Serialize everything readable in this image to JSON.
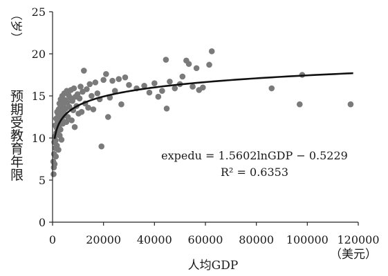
{
  "chart_data": {
    "type": "scatter",
    "ylabel_unit": "（岁）",
    "ylabel": "预期受教育年限",
    "xlabel": "人均GDP",
    "xlabel_unit": "（美元）",
    "xlim": [
      0,
      120000
    ],
    "ylim": [
      0,
      25
    ],
    "xticks": [
      0,
      20000,
      40000,
      60000,
      80000,
      100000,
      120000
    ],
    "xtick_labels": [
      "0",
      "20000",
      "40000",
      "60000",
      "80000",
      "100000",
      "120000"
    ],
    "yticks": [
      0,
      5,
      10,
      15,
      20,
      25
    ],
    "ytick_labels": [
      "0",
      "5",
      "10",
      "15",
      "20",
      "25"
    ],
    "grid": false,
    "marker_color": "#7a7a7a",
    "curve_color": "#111111",
    "trendline": {
      "type": "logarithmic",
      "a": 1.5602,
      "b": -0.5229,
      "x_range": [
        800,
        118000
      ],
      "equation_text": "expedu = 1.5602lnGDP − 0.5229",
      "r2_text": "R² = 0.6353"
    },
    "points": [
      [
        300,
        7.2
      ],
      [
        400,
        5.7
      ],
      [
        500,
        6.5
      ],
      [
        600,
        8.1
      ],
      [
        700,
        9.5
      ],
      [
        800,
        6.9
      ],
      [
        900,
        10.2
      ],
      [
        1000,
        8.8
      ],
      [
        1100,
        11.5
      ],
      [
        1200,
        9.7
      ],
      [
        1300,
        7.8
      ],
      [
        1400,
        12.3
      ],
      [
        1500,
        10.6
      ],
      [
        1600,
        11.2
      ],
      [
        1700,
        9.1
      ],
      [
        1800,
        13.1
      ],
      [
        1900,
        12.0
      ],
      [
        2000,
        10.9
      ],
      [
        2100,
        11.8
      ],
      [
        2200,
        12.8
      ],
      [
        2300,
        8.6
      ],
      [
        2400,
        13.4
      ],
      [
        2500,
        11.4
      ],
      [
        2600,
        12.4
      ],
      [
        2700,
        14.1
      ],
      [
        2800,
        10.3
      ],
      [
        2900,
        12.9
      ],
      [
        3000,
        13.6
      ],
      [
        3100,
        11.0
      ],
      [
        3200,
        14.6
      ],
      [
        3300,
        12.6
      ],
      [
        3400,
        13.9
      ],
      [
        3500,
        9.8
      ],
      [
        3600,
        14.3
      ],
      [
        3700,
        12.2
      ],
      [
        3800,
        15.0
      ],
      [
        3900,
        13.2
      ],
      [
        4000,
        11.7
      ],
      [
        4200,
        14.0
      ],
      [
        4400,
        13.0
      ],
      [
        4600,
        15.3
      ],
      [
        4800,
        12.7
      ],
      [
        5000,
        14.5
      ],
      [
        5200,
        13.5
      ],
      [
        5400,
        11.9
      ],
      [
        5600,
        15.6
      ],
      [
        5800,
        14.2
      ],
      [
        6000,
        12.5
      ],
      [
        6300,
        15.1
      ],
      [
        6600,
        13.7
      ],
      [
        6900,
        14.8
      ],
      [
        7200,
        15.7
      ],
      [
        7500,
        12.1
      ],
      [
        7800,
        14.4
      ],
      [
        8100,
        13.3
      ],
      [
        8400,
        15.9
      ],
      [
        8700,
        11.3
      ],
      [
        9000,
        14.9
      ],
      [
        9400,
        13.8
      ],
      [
        9800,
        15.2
      ],
      [
        10200,
        12.9
      ],
      [
        10600,
        14.7
      ],
      [
        11000,
        16.1
      ],
      [
        11400,
        13.1
      ],
      [
        11800,
        15.5
      ],
      [
        12300,
        18.0
      ],
      [
        12800,
        14.1
      ],
      [
        13400,
        15.8
      ],
      [
        14000,
        13.6
      ],
      [
        14600,
        16.4
      ],
      [
        15300,
        15.0
      ],
      [
        16000,
        13.4
      ],
      [
        16800,
        16.6
      ],
      [
        17600,
        15.3
      ],
      [
        18500,
        14.6
      ],
      [
        19200,
        9.0
      ],
      [
        20000,
        16.9
      ],
      [
        21000,
        17.6
      ],
      [
        21800,
        12.5
      ],
      [
        22500,
        14.8
      ],
      [
        23500,
        16.8
      ],
      [
        24500,
        15.6
      ],
      [
        26000,
        17.0
      ],
      [
        27000,
        14.0
      ],
      [
        28500,
        17.2
      ],
      [
        30000,
        16.3
      ],
      [
        33000,
        15.9
      ],
      [
        36000,
        16.2
      ],
      [
        38000,
        15.4
      ],
      [
        40000,
        16.5
      ],
      [
        41500,
        14.9
      ],
      [
        43000,
        15.6
      ],
      [
        44500,
        19.3
      ],
      [
        44800,
        13.5
      ],
      [
        46000,
        16.7
      ],
      [
        48000,
        15.9
      ],
      [
        50000,
        16.4
      ],
      [
        51000,
        17.3
      ],
      [
        52500,
        19.2
      ],
      [
        53500,
        18.8
      ],
      [
        55000,
        16.1
      ],
      [
        56500,
        18.3
      ],
      [
        57500,
        15.7
      ],
      [
        59000,
        16.0
      ],
      [
        61500,
        18.7
      ],
      [
        62500,
        20.3
      ],
      [
        86000,
        15.9
      ],
      [
        97000,
        14.0
      ],
      [
        98000,
        17.5
      ],
      [
        117000,
        14.0
      ]
    ]
  }
}
